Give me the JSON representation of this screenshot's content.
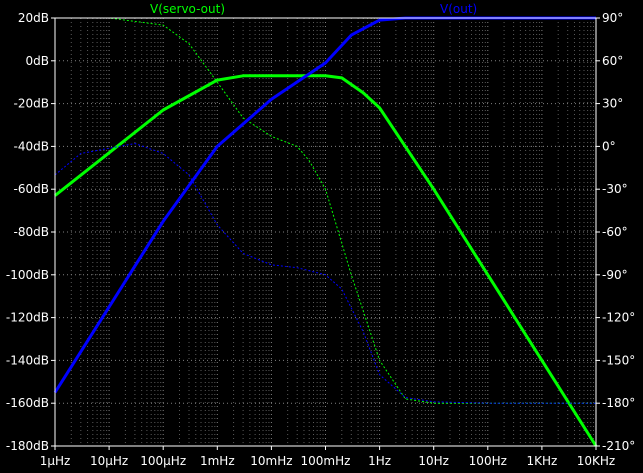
{
  "chart_data": {
    "type": "line",
    "x_scale": "log",
    "x_unit": "Hz",
    "x_range": [
      1e-06,
      10000
    ],
    "x_ticks": [
      "1µHz",
      "10µHz",
      "100µHz",
      "1mHz",
      "10mHz",
      "100mHz",
      "1Hz",
      "10Hz",
      "100Hz",
      "1KHz",
      "10KHz"
    ],
    "y_left_range": [
      -180,
      20
    ],
    "y_left_ticks": [
      "20dB",
      "0dB",
      "-20dB",
      "-40dB",
      "-60dB",
      "-80dB",
      "-100dB",
      "-120dB",
      "-140dB",
      "-160dB",
      "-180dB"
    ],
    "y_right_range": [
      -210,
      90
    ],
    "y_right_ticks": [
      "90°",
      "60°",
      "30°",
      "0°",
      "-30°",
      "-60°",
      "-90°",
      "-120°",
      "-150°",
      "-180°",
      "-210°"
    ],
    "grid": true,
    "background": "#000000",
    "grid_color": "#808080",
    "series": [
      {
        "name": "V(servo-out)",
        "color": "#00ff00",
        "axis": "left",
        "quantity": "magnitude_dB",
        "points": [
          [
            1e-06,
            -63
          ],
          [
            1e-05,
            -43
          ],
          [
            0.0001,
            -23
          ],
          [
            0.001,
            -9
          ],
          [
            0.003,
            -7
          ],
          [
            0.01,
            -7
          ],
          [
            0.1,
            -7
          ],
          [
            0.2,
            -8
          ],
          [
            0.5,
            -15
          ],
          [
            1,
            -22
          ],
          [
            10,
            -60
          ],
          [
            100,
            -100
          ],
          [
            1000,
            -140
          ],
          [
            10000,
            -180
          ]
        ]
      },
      {
        "name": "V(servo-out) phase",
        "color": "#00ff00",
        "axis": "right",
        "quantity": "phase_deg",
        "points": [
          [
            1e-06,
            90
          ],
          [
            1e-05,
            90
          ],
          [
            0.0001,
            85
          ],
          [
            0.0003,
            72
          ],
          [
            0.001,
            45
          ],
          [
            0.003,
            20
          ],
          [
            0.01,
            7
          ],
          [
            0.03,
            0
          ],
          [
            0.05,
            -10
          ],
          [
            0.1,
            -30
          ],
          [
            0.3,
            -90
          ],
          [
            1,
            -150
          ],
          [
            3,
            -177
          ],
          [
            10,
            -180
          ],
          [
            100,
            -180
          ],
          [
            1000,
            -180
          ],
          [
            10000,
            -180
          ]
        ]
      },
      {
        "name": "V(out)",
        "color": "#0000ff",
        "axis": "left",
        "quantity": "magnitude_dB",
        "points": [
          [
            1e-06,
            -155
          ],
          [
            1e-05,
            -115
          ],
          [
            0.0001,
            -75
          ],
          [
            0.001,
            -40
          ],
          [
            0.01,
            -18
          ],
          [
            0.1,
            -1
          ],
          [
            0.3,
            12
          ],
          [
            1,
            19
          ],
          [
            3,
            20
          ],
          [
            10,
            20
          ],
          [
            100,
            20
          ],
          [
            1000,
            20
          ],
          [
            10000,
            20
          ]
        ]
      },
      {
        "name": "V(out) phase",
        "color": "#0000ff",
        "axis": "right",
        "quantity": "phase_deg",
        "points": [
          [
            1e-06,
            -20
          ],
          [
            3e-06,
            -5
          ],
          [
            3e-05,
            2
          ],
          [
            0.0001,
            -5
          ],
          [
            0.0003,
            -20
          ],
          [
            0.001,
            -55
          ],
          [
            0.003,
            -75
          ],
          [
            0.01,
            -83
          ],
          [
            0.03,
            -85
          ],
          [
            0.1,
            -90
          ],
          [
            0.2,
            -100
          ],
          [
            0.5,
            -130
          ],
          [
            1,
            -160
          ],
          [
            3,
            -176
          ],
          [
            10,
            -179
          ],
          [
            100,
            -180
          ],
          [
            1000,
            -180
          ],
          [
            10000,
            -180
          ]
        ]
      }
    ]
  },
  "legend": {
    "left_label": "V(servo-out)",
    "right_label": "V(out)"
  }
}
